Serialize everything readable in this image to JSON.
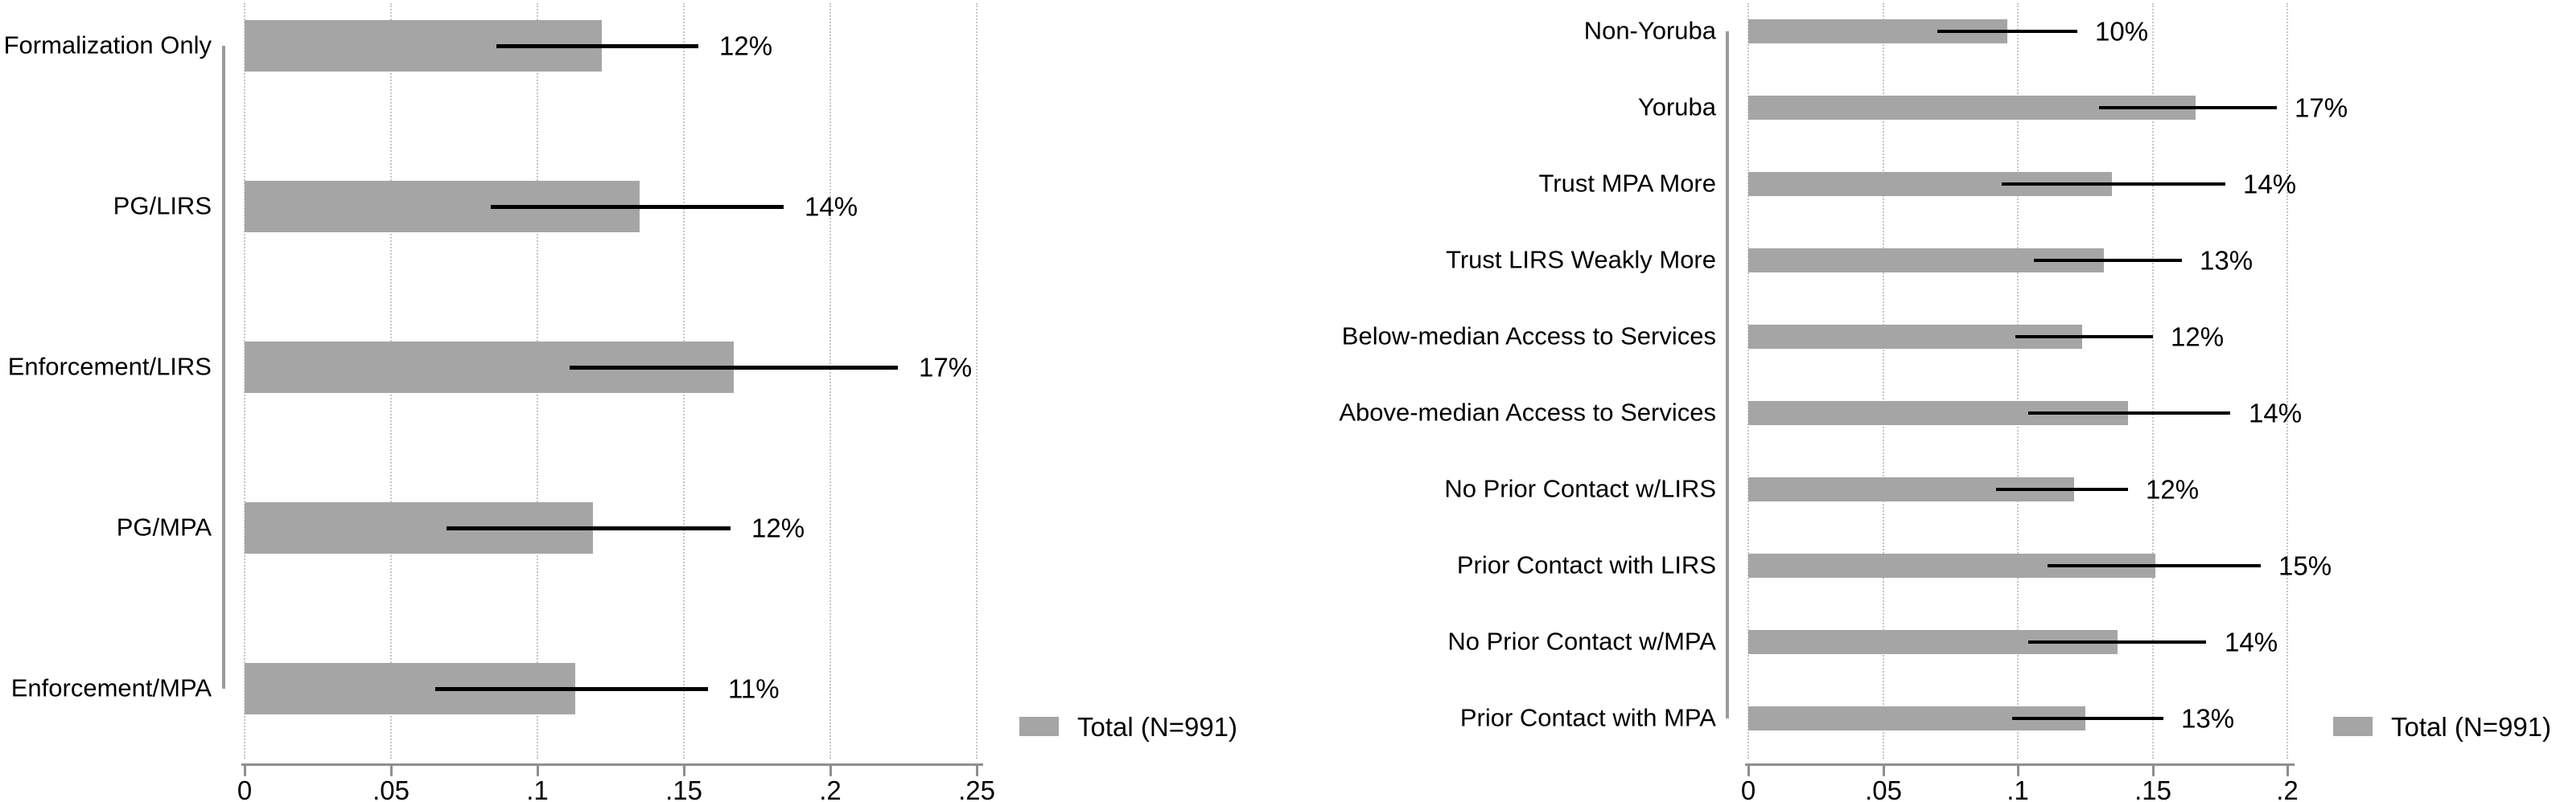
{
  "figure": {
    "legend_label": "Total (N=991)",
    "bar_color": "#a5a5a5",
    "error_color": "#000000",
    "axis_color": "#8f8f8f",
    "category_axis_color": "#9a9a9a",
    "gridline_color": "#c6c6c6",
    "text_color": "#000000",
    "background_color": "#ffffff"
  },
  "chart_data": [
    {
      "type": "bar",
      "orientation": "horizontal",
      "title": "",
      "xlabel": "",
      "ylabel": "",
      "grid": "vertical-dotted",
      "legend_position": "bottom-right",
      "legend": "Total (N=991)",
      "categories": [
        "Formalization Only",
        "PG/LIRS",
        "Enforcement/LIRS",
        "PG/MPA",
        "Enforcement/MPA"
      ],
      "values": [
        0.122,
        0.135,
        0.167,
        0.119,
        0.113
      ],
      "value_labels": [
        "12%",
        "14%",
        "17%",
        "12%",
        "11%"
      ],
      "ci_low": [
        0.086,
        0.084,
        0.111,
        0.069,
        0.065
      ],
      "ci_high": [
        0.155,
        0.184,
        0.223,
        0.166,
        0.158
      ],
      "x_ticks": [
        "0",
        ".05",
        ".1",
        ".15",
        ".2",
        ".25"
      ],
      "x_tick_values": [
        0,
        0.05,
        0.1,
        0.15,
        0.2,
        0.25
      ],
      "xlim": [
        0,
        0.25
      ]
    },
    {
      "type": "bar",
      "orientation": "horizontal",
      "title": "",
      "xlabel": "",
      "ylabel": "",
      "grid": "vertical-dotted",
      "legend_position": "bottom-right",
      "legend": "Total (N=991)",
      "categories": [
        "Non-Yoruba",
        "Yoruba",
        "Trust MPA More",
        "Trust LIRS Weakly More",
        "Below-median Access to Services",
        "Above-median Access to Services",
        "No Prior Contact w/LIRS",
        "Prior Contact with LIRS",
        "No Prior Contact w/MPA",
        "Prior Contact with MPA"
      ],
      "values": [
        0.096,
        0.166,
        0.135,
        0.132,
        0.124,
        0.141,
        0.121,
        0.151,
        0.137,
        0.125
      ],
      "value_labels": [
        "10%",
        "17%",
        "14%",
        "13%",
        "12%",
        "14%",
        "12%",
        "15%",
        "14%",
        "13%"
      ],
      "ci_low": [
        0.07,
        0.13,
        0.094,
        0.106,
        0.099,
        0.104,
        0.092,
        0.111,
        0.104,
        0.098
      ],
      "ci_high": [
        0.122,
        0.196,
        0.177,
        0.161,
        0.15,
        0.179,
        0.141,
        0.19,
        0.17,
        0.154
      ],
      "x_ticks": [
        "0",
        ".05",
        ".1",
        ".15",
        ".2"
      ],
      "x_tick_values": [
        0,
        0.05,
        0.1,
        0.15,
        0.2
      ],
      "xlim": [
        0,
        0.2
      ]
    }
  ]
}
